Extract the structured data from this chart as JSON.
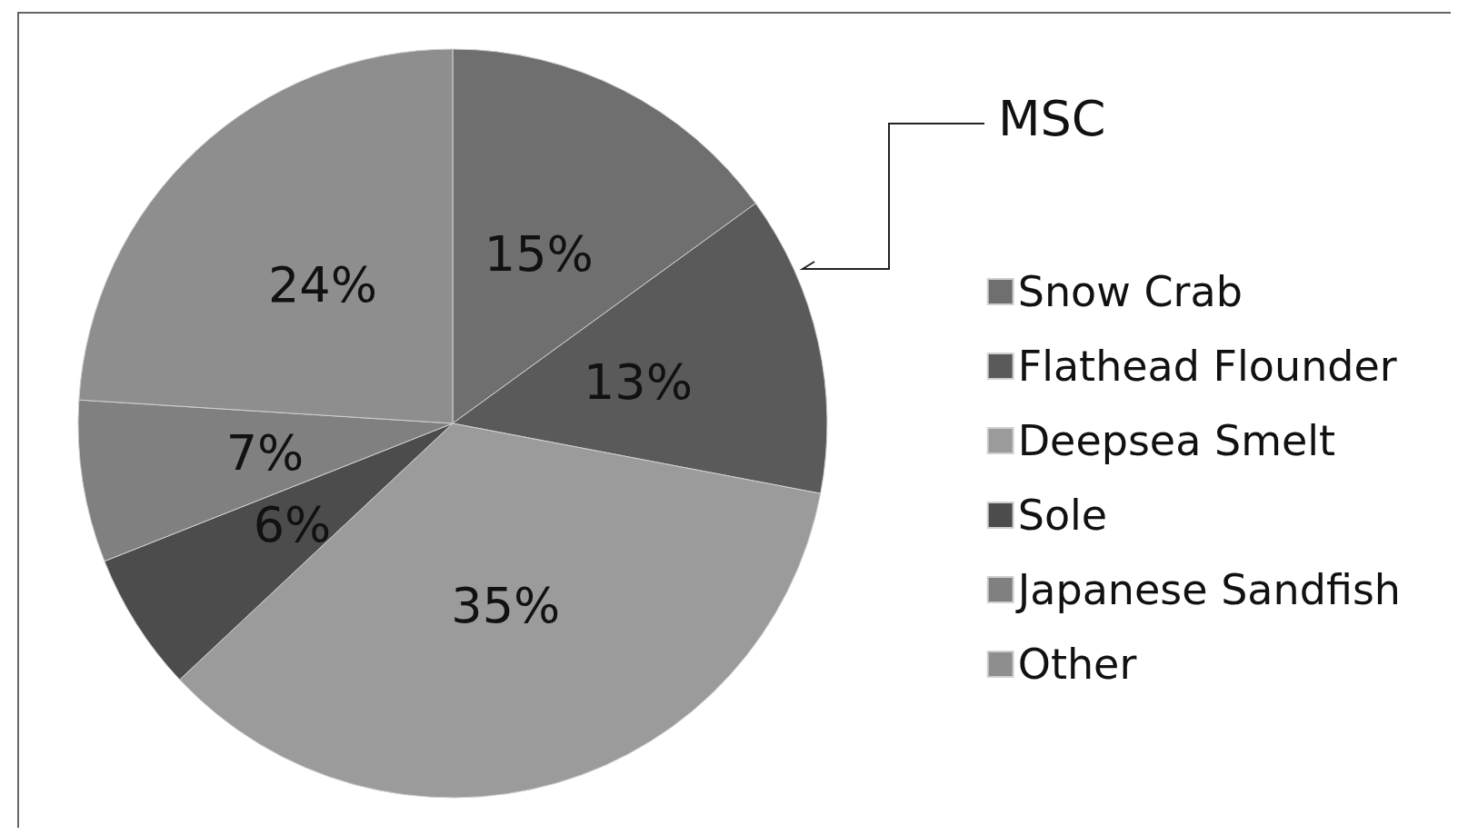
{
  "chart_data": {
    "type": "pie",
    "categories": [
      "Snow Crab",
      "Flathead Flounder",
      "Deepsea Smelt",
      "Sole",
      "Japanese Sandfish",
      "Other"
    ],
    "values": [
      15,
      13,
      35,
      6,
      7,
      24
    ],
    "colors": [
      "#6f6f6f",
      "#5a5a5a",
      "#9b9b9b",
      "#4c4c4c",
      "#808080",
      "#8e8e8e"
    ],
    "annotations": [
      "MSC"
    ],
    "legend": "right",
    "value_labels": [
      "15%",
      "13%",
      "35%",
      "6%",
      "7%",
      "24%"
    ]
  }
}
